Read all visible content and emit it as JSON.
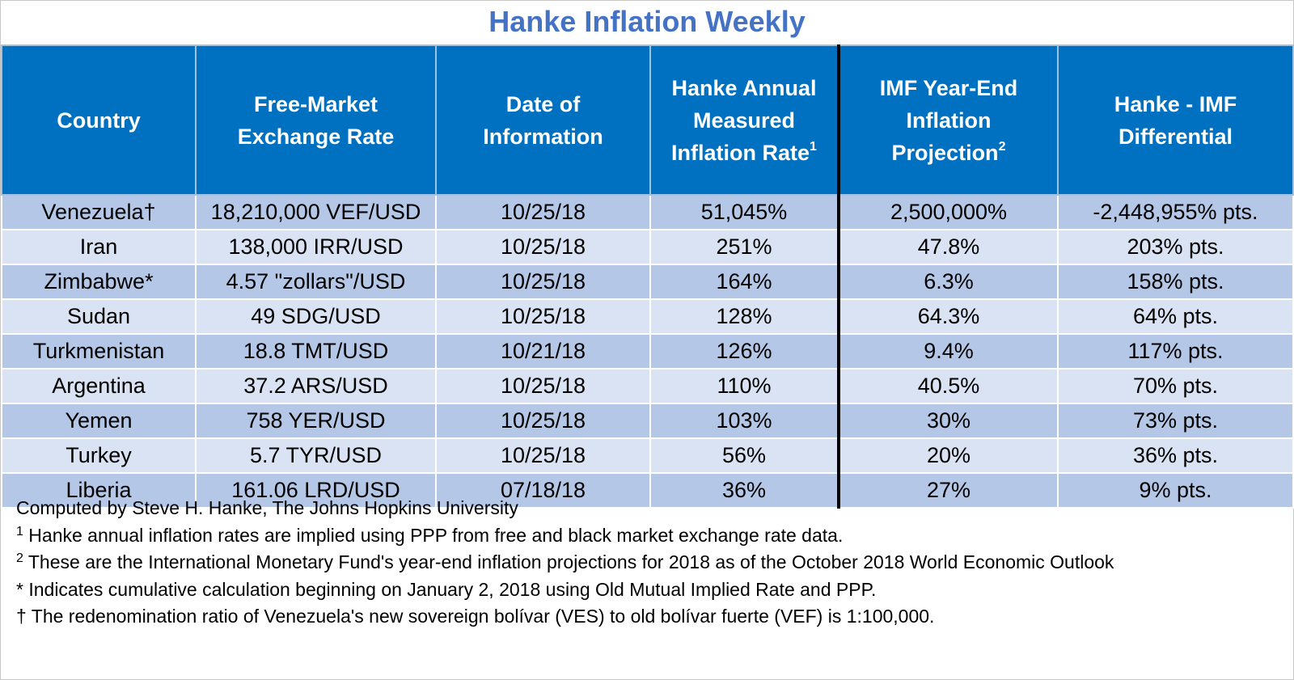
{
  "title": "Hanke Inflation Weekly",
  "colors": {
    "title": "#4472c4",
    "header_bg": "#0070c0",
    "row_dark": "#b4c7e7",
    "row_light": "#dae3f3"
  },
  "headers": {
    "country": "Country",
    "rate_line1": "Free-Market",
    "rate_line2": "Exchange Rate",
    "date_line1": "Date of",
    "date_line2": "Information",
    "hanke_line1": "Hanke Annual",
    "hanke_line2": "Measured",
    "hanke_line3": "Inflation Rate",
    "hanke_sup": "1",
    "imf_line1": "IMF Year-End",
    "imf_line2": "Inflation",
    "imf_line3": "Projection",
    "imf_sup": "2",
    "diff_line1": "Hanke - IMF",
    "diff_line2": "Differential"
  },
  "rows": [
    {
      "country": "Venezuela†",
      "rate": "18,210,000 VEF/USD",
      "date": "10/25/18",
      "hanke": "51,045%",
      "imf": "2,500,000%",
      "diff": "-2,448,955% pts."
    },
    {
      "country": "Iran",
      "rate": "138,000 IRR/USD",
      "date": "10/25/18",
      "hanke": "251%",
      "imf": "47.8%",
      "diff": "203% pts."
    },
    {
      "country": "Zimbabwe*",
      "rate": "4.57 \"zollars\"/USD",
      "date": "10/25/18",
      "hanke": "164%",
      "imf": "6.3%",
      "diff": "158% pts."
    },
    {
      "country": "Sudan",
      "rate": "49 SDG/USD",
      "date": "10/25/18",
      "hanke": "128%",
      "imf": "64.3%",
      "diff": "64% pts."
    },
    {
      "country": "Turkmenistan",
      "rate": "18.8 TMT/USD",
      "date": "10/21/18",
      "hanke": "126%",
      "imf": "9.4%",
      "diff": "117% pts."
    },
    {
      "country": "Argentina",
      "rate": "37.2 ARS/USD",
      "date": "10/25/18",
      "hanke": "110%",
      "imf": "40.5%",
      "diff": "70% pts."
    },
    {
      "country": "Yemen",
      "rate": "758 YER/USD",
      "date": "10/25/18",
      "hanke": "103%",
      "imf": "30%",
      "diff": "73% pts."
    },
    {
      "country": "Turkey",
      "rate": "5.7 TYR/USD",
      "date": "10/25/18",
      "hanke": "56%",
      "imf": "20%",
      "diff": "36% pts."
    },
    {
      "country": "Liberia",
      "rate": "161.06 LRD/USD",
      "date": "07/18/18",
      "hanke": "36%",
      "imf": "27%",
      "diff": "9% pts."
    }
  ],
  "notes": {
    "credit": "Computed by Steve H. Hanke, The Johns Hopkins University",
    "n1_mark": "1",
    "n1_text": " Hanke annual inflation rates are implied using PPP from free and black market exchange rate data.",
    "n2_mark": "2",
    "n2_text": " These are the International Monetary Fund's year-end inflation projections for 2018 as of the October 2018 World Economic Outlook",
    "n3": "* Indicates cumulative calculation beginning on January 2, 2018 using Old Mutual Implied Rate and PPP.",
    "n4": "† The redenomination ratio of Venezuela's new sovereign bolívar (VES) to old bolívar fuerte (VEF) is 1:100,000."
  }
}
